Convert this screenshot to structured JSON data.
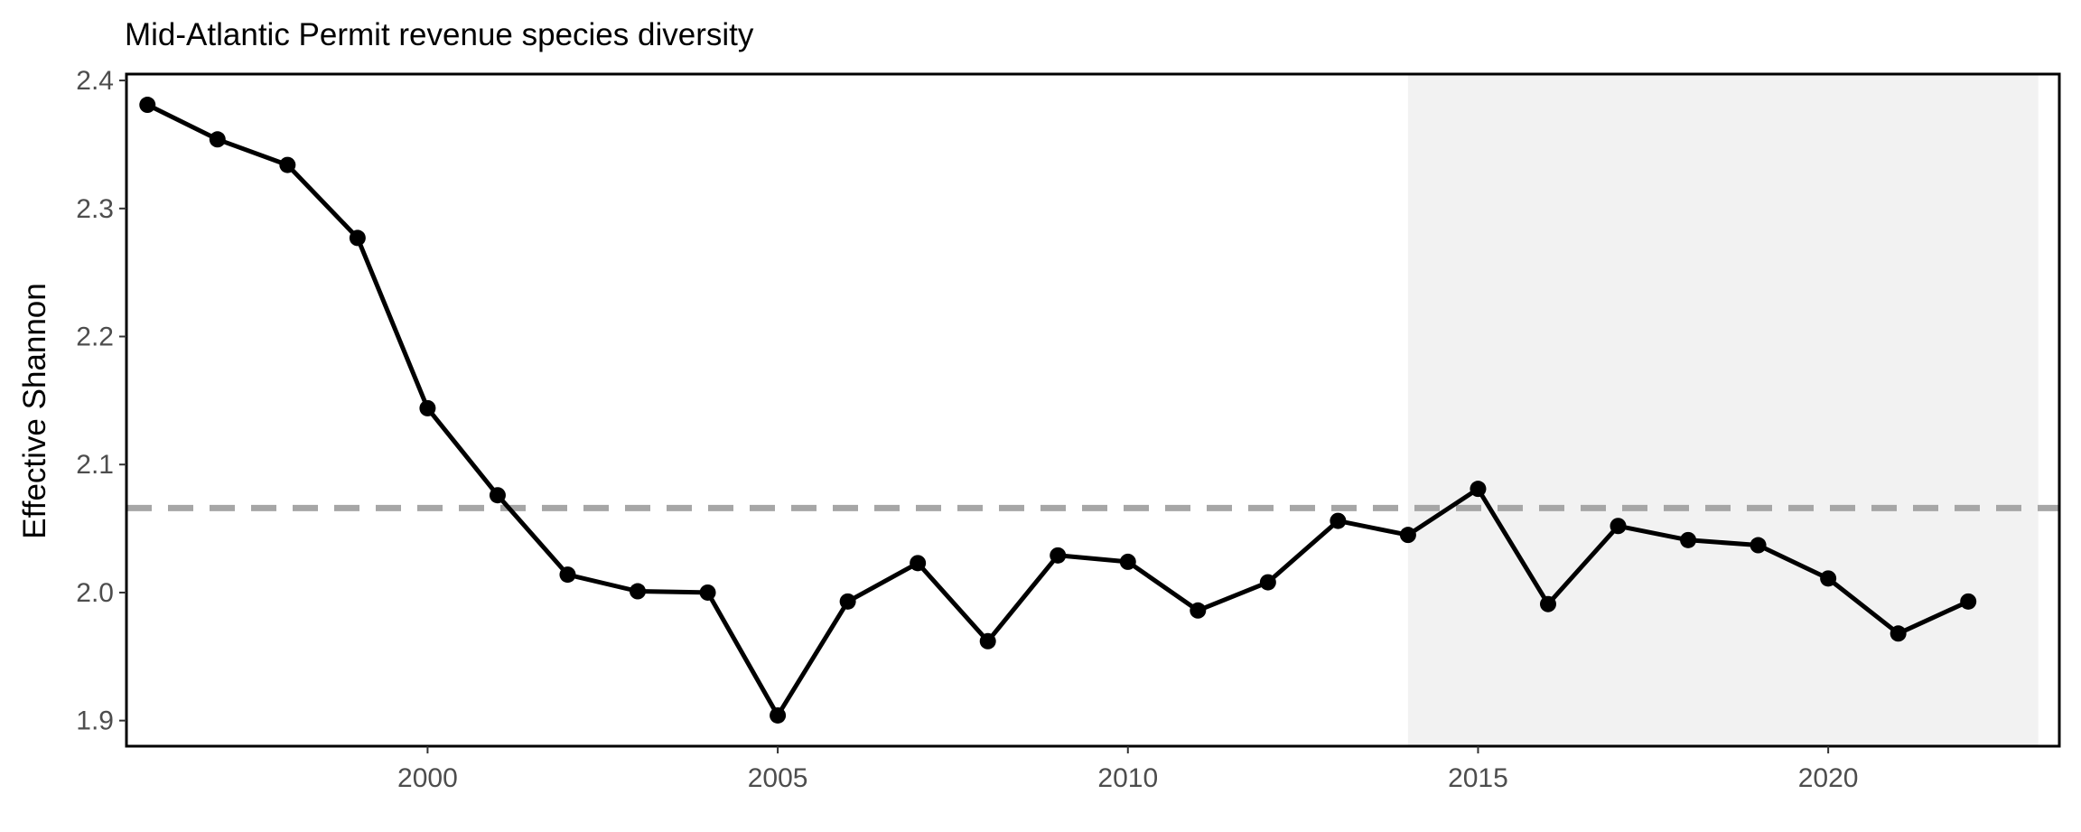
{
  "chart_data": {
    "type": "line",
    "title": "Mid-Atlantic Permit revenue species diversity",
    "xlabel": "",
    "ylabel": "Effective Shannon",
    "xlim": [
      1995.7,
      2023.3
    ],
    "ylim": [
      1.88,
      2.405
    ],
    "x_ticks": [
      2000,
      2005,
      2010,
      2015,
      2020
    ],
    "x_tick_labels": [
      "2000",
      "2005",
      "2010",
      "2015",
      "2020"
    ],
    "y_ticks": [
      1.9,
      2.0,
      2.1,
      2.2,
      2.3,
      2.4
    ],
    "y_tick_labels": [
      "1.9",
      "2.0",
      "2.1",
      "2.2",
      "2.3",
      "2.4"
    ],
    "grid": false,
    "series": [
      {
        "x": [
          1996,
          1997,
          1998,
          1999,
          2000,
          2001,
          2002,
          2003,
          2004,
          2005,
          2006,
          2007,
          2008,
          2009,
          2010,
          2011,
          2012,
          2013,
          2014,
          2015,
          2016,
          2017,
          2018,
          2019,
          2020,
          2021,
          2022
        ],
        "values": [
          2.381,
          2.354,
          2.334,
          2.277,
          2.144,
          2.076,
          2.014,
          2.001,
          2.0,
          1.904,
          1.993,
          2.023,
          1.962,
          2.029,
          2.024,
          1.986,
          2.008,
          2.056,
          2.045,
          2.081,
          1.991,
          2.052,
          2.041,
          2.037,
          2.011,
          1.968,
          1.993
        ],
        "color": "#000000"
      }
    ],
    "mean_line": {
      "y": 2.066,
      "color": "#a6a6a6",
      "style": "dashed"
    },
    "shaded_region": {
      "x": [
        2014,
        2023
      ],
      "color": "#f2f2f2"
    }
  }
}
